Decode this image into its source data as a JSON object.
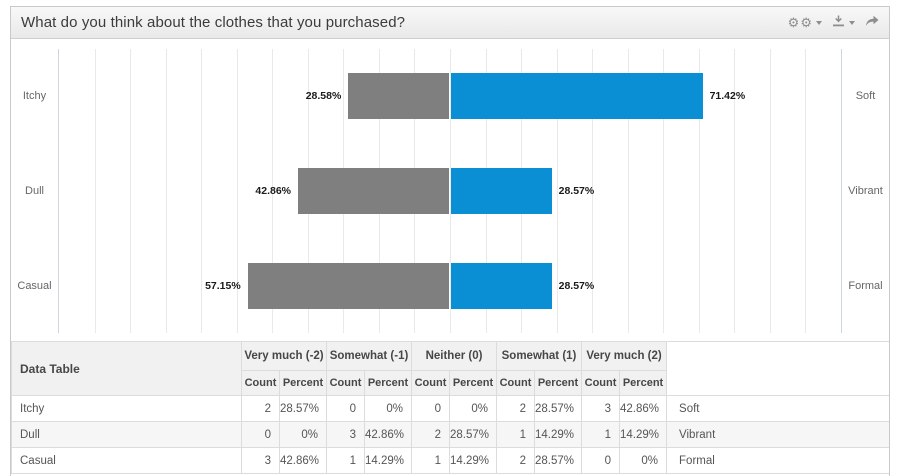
{
  "title": "What do you think about the clothes that you purchased?",
  "toolbar": {
    "icons": [
      {
        "name": "settings-cogs-icon",
        "has_caret": true
      },
      {
        "name": "download-icon",
        "has_caret": true
      },
      {
        "name": "share-arrow-icon",
        "has_caret": false
      }
    ]
  },
  "chart_data": {
    "type": "bar",
    "subtype": "diverging-stacked",
    "title": "What do you think about the clothes that you purchased?",
    "axis": {
      "half_span": 111,
      "gridline_count": 22,
      "grid": true
    },
    "colors": {
      "negative": "#7f7f7f",
      "positive": "#0b8fd4"
    },
    "rows": [
      {
        "left_label": "Itchy",
        "right_label": "Soft",
        "negative": {
          "value": 28.58,
          "label": "28.58%"
        },
        "positive": {
          "value": 71.42,
          "label": "71.42%"
        }
      },
      {
        "left_label": "Dull",
        "right_label": "Vibrant",
        "negative": {
          "value": 42.86,
          "label": "42.86%"
        },
        "positive": {
          "value": 28.57,
          "label": "28.57%"
        }
      },
      {
        "left_label": "Casual",
        "right_label": "Formal",
        "negative": {
          "value": 57.15,
          "label": "57.15%"
        },
        "positive": {
          "value": 28.57,
          "label": "28.57%"
        }
      }
    ]
  },
  "table": {
    "corner_label": "Data Table",
    "groups": [
      "Very much (-2)",
      "Somewhat (-1)",
      "Neither (0)",
      "Somewhat (1)",
      "Very much (2)"
    ],
    "subheaders": [
      "Count",
      "Percent"
    ],
    "rows": [
      {
        "label": "Itchy",
        "cells": [
          "2",
          "28.57%",
          "0",
          "0%",
          "0",
          "0%",
          "2",
          "28.57%",
          "3",
          "42.86%"
        ],
        "right_label": "Soft"
      },
      {
        "label": "Dull",
        "cells": [
          "0",
          "0%",
          "3",
          "42.86%",
          "2",
          "28.57%",
          "1",
          "14.29%",
          "1",
          "14.29%"
        ],
        "right_label": "Vibrant"
      },
      {
        "label": "Casual",
        "cells": [
          "3",
          "42.86%",
          "1",
          "14.29%",
          "1",
          "14.29%",
          "2",
          "28.57%",
          "0",
          "0%"
        ],
        "right_label": "Formal"
      }
    ]
  }
}
